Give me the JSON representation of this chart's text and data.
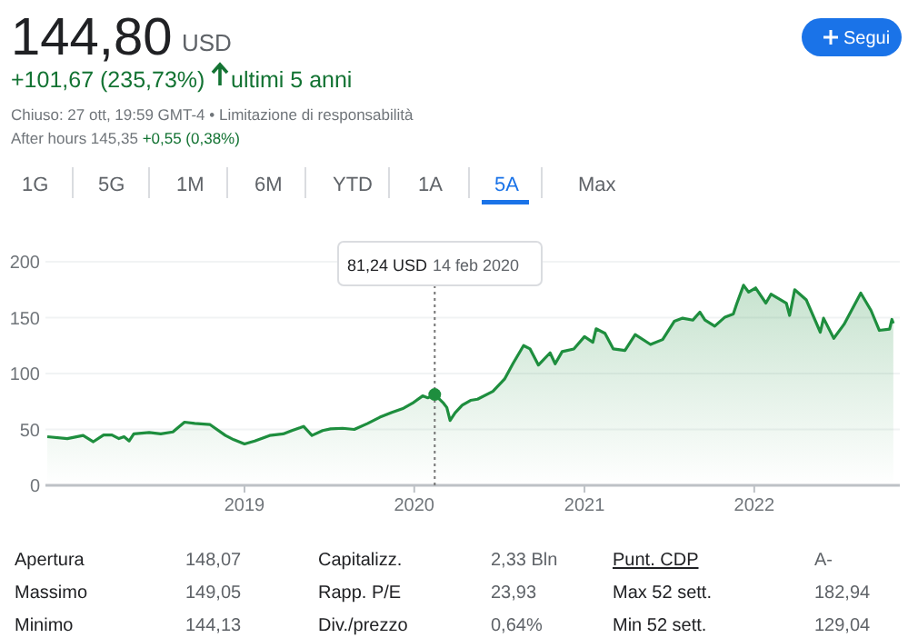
{
  "chart_data": {
    "type": "area",
    "title": "144,80",
    "x": [
      "2017-11-03",
      "2017-12-16",
      "2018-01-19",
      "2018-02-10",
      "2018-03-04",
      "2018-03-22",
      "2018-04-06",
      "2018-04-17",
      "2018-04-28",
      "2018-05-08",
      "2018-06-10",
      "2018-07-05",
      "2018-07-31",
      "2018-08-25",
      "2018-09-16",
      "2018-10-19",
      "2018-11-21",
      "2018-12-09",
      "2019-01-01",
      "2019-01-23",
      "2019-02-24",
      "2019-03-25",
      "2019-04-13",
      "2019-05-01",
      "2019-05-08",
      "2019-05-26",
      "2019-06-18",
      "2019-07-05",
      "2019-07-31",
      "2019-08-25",
      "2019-09-23",
      "2019-10-19",
      "2019-11-14",
      "2019-12-09",
      "2019-12-28",
      "2020-01-19",
      "2020-01-30",
      "2020-02-14",
      "2020-03-04",
      "2020-03-11",
      "2020-03-18",
      "2020-03-29",
      "2020-04-13",
      "2020-05-01",
      "2020-05-16",
      "2020-06-18",
      "2020-07-13",
      "2020-07-31",
      "2020-08-23",
      "2020-09-06",
      "2020-09-24",
      "2020-10-19",
      "2020-10-30",
      "2020-11-14",
      "2020-12-09",
      "2021-01-01",
      "2021-01-19",
      "2021-01-26",
      "2021-02-14",
      "2021-03-04",
      "2021-03-29",
      "2021-04-20",
      "2021-05-23",
      "2021-06-18",
      "2021-07-13",
      "2021-07-31",
      "2021-08-22",
      "2021-09-06",
      "2021-09-17",
      "2021-10-08",
      "2021-10-30",
      "2021-11-17",
      "2021-11-24",
      "2021-12-09",
      "2021-12-20",
      "2022-01-04",
      "2022-01-26",
      "2022-02-06",
      "2022-03-11",
      "2022-03-18",
      "2022-03-29",
      "2022-04-23",
      "2022-05-23",
      "2022-05-30",
      "2022-06-21",
      "2022-07-13",
      "2022-08-18",
      "2022-09-09",
      "2022-09-27",
      "2022-10-19",
      "2022-10-24",
      "2022-10-27"
    ],
    "series": [
      {
        "color": "#1e8e3e",
        "values": [
          43.5,
          41.8,
          44.6,
          39,
          45,
          45,
          41.8,
          43.5,
          39.7,
          46,
          47.3,
          46,
          47.8,
          56.5,
          55.4,
          54.3,
          44.6,
          40.8,
          37,
          39.7,
          44.6,
          46,
          49,
          51.6,
          52.7,
          44.6,
          49,
          50.5,
          51,
          50,
          55.4,
          60.9,
          65.2,
          69,
          73.4,
          80,
          78.3,
          81.24,
          73.4,
          69.6,
          58,
          65,
          71.7,
          76,
          77,
          84,
          95,
          108.7,
          125,
          122,
          107.6,
          118.5,
          108.7,
          119.6,
          122,
          133,
          128,
          140,
          136,
          122,
          120.7,
          134.8,
          126,
          130.4,
          146.7,
          149.5,
          147.8,
          154.9,
          147.8,
          142.4,
          150.5,
          153.3,
          162,
          179,
          172.8,
          176.6,
          163,
          171,
          163,
          152,
          175,
          165.8,
          137,
          149.5,
          131.5,
          144,
          172,
          156.5,
          138.6,
          139.7,
          148.4,
          144.8
        ]
      }
    ],
    "xlim": [
      "2017-10-30",
      "2022-11-10"
    ],
    "xticks": [
      "2019",
      "2020",
      "2021",
      "2022"
    ],
    "ylim": [
      0,
      200
    ],
    "yticks": [
      0,
      50,
      100,
      150,
      200
    ],
    "grid": "y",
    "ref_lines": [
      {
        "axis": "x",
        "value": "2020-02-14",
        "line_style": "dotted",
        "color": "#757575"
      }
    ],
    "annotations": [
      "USD",
      "+101,67 (235,73%)",
      "ultimi 5 anni",
      "Chiuso: 27 ott, 19:59 GMT-4 • Limitazione di responsabilità",
      "After hours 145,35",
      "+0,55 (0,38%)",
      "Segui",
      "1G",
      "5G",
      "1M",
      "6M",
      "YTD",
      "1A",
      "5A",
      "Max",
      "81,24 USD",
      "14 feb 2020",
      "Apertura",
      "148,07",
      "Capitalizz.",
      "2,33 Bln",
      "Punt. CDP",
      "A-",
      "Massimo",
      "149,05",
      "Rapp. P/E",
      "23,93",
      "Max 52 sett.",
      "182,94",
      "Minimo",
      "144,13",
      "Div./prezzo",
      "0,64%",
      "Min 52 sett.",
      "129,04"
    ]
  }
}
